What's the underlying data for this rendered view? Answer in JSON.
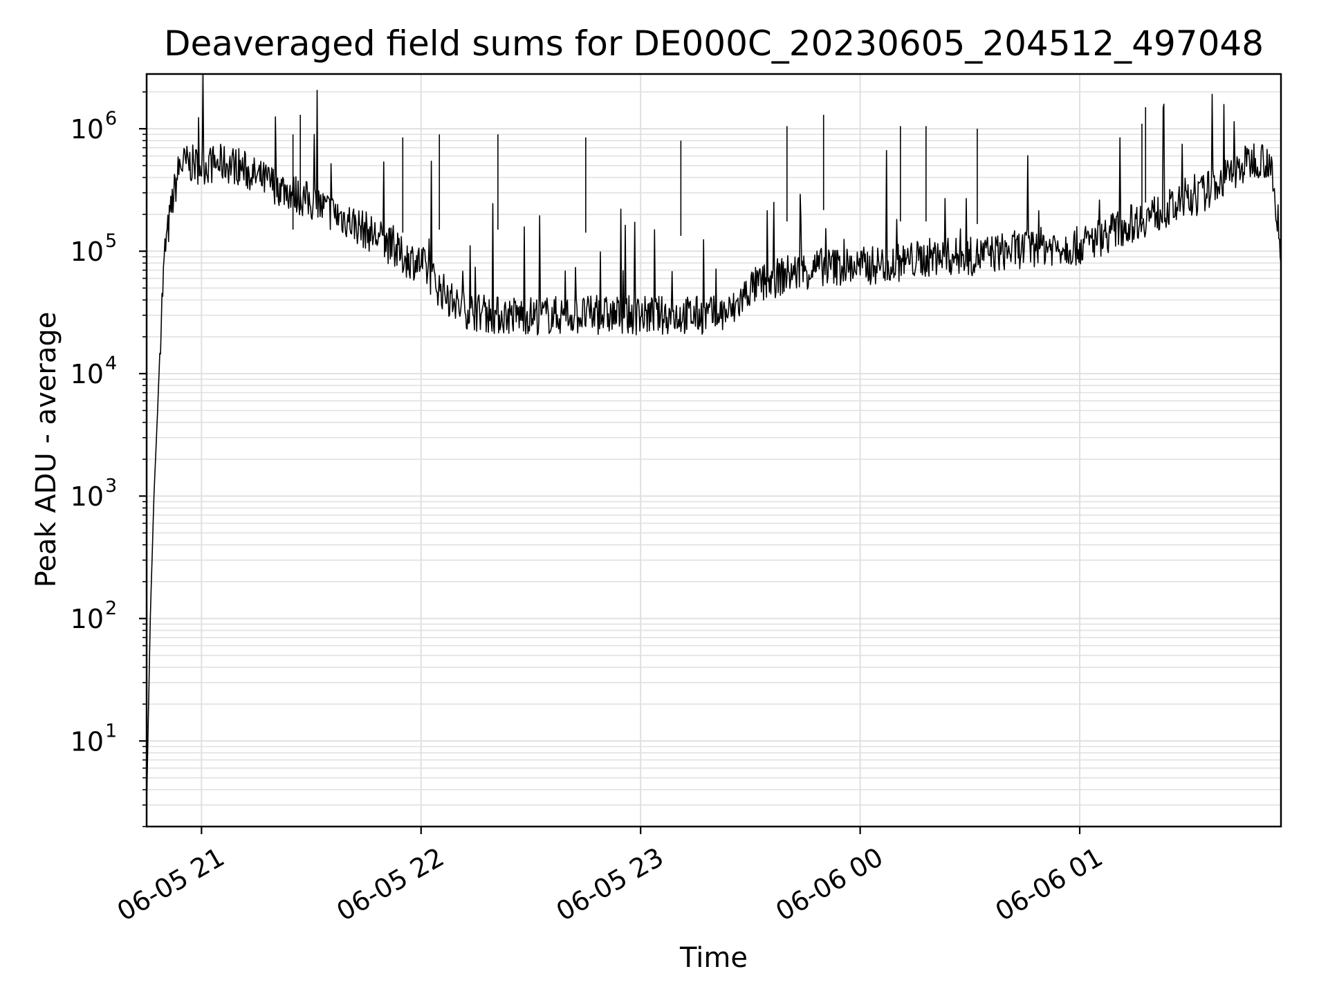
{
  "chart_data": {
    "type": "line",
    "title": "Deaveraged field sums for DE000C_20230605_204512_497048",
    "xlabel": "Time",
    "ylabel": "Peak ADU - average",
    "yscale": "log",
    "ylim": [
      2,
      2800000
    ],
    "xlim": [
      "2023-06-05 20:45",
      "2023-06-06 01:55"
    ],
    "grid": true,
    "line_color": "#000000",
    "grid_color": "#e0e0e0",
    "x_ticks": [
      {
        "value": "2023-06-05 21:00",
        "label": "06-05 21"
      },
      {
        "value": "2023-06-05 22:00",
        "label": "06-05 22"
      },
      {
        "value": "2023-06-05 23:00",
        "label": "06-05 23"
      },
      {
        "value": "2023-06-06 00:00",
        "label": "06-06 00"
      },
      {
        "value": "2023-06-06 01:00",
        "label": "06-06 01"
      }
    ],
    "y_ticks": [
      {
        "value": 10,
        "base": "10",
        "exp": "1"
      },
      {
        "value": 100,
        "base": "10",
        "exp": "2"
      },
      {
        "value": 1000,
        "base": "10",
        "exp": "3"
      },
      {
        "value": 10000,
        "base": "10",
        "exp": "4"
      },
      {
        "value": 100000,
        "base": "10",
        "exp": "5"
      },
      {
        "value": 1000000,
        "base": "10",
        "exp": "6"
      }
    ],
    "series": [
      {
        "x": [
          "2023-06-05 20:45",
          "2023-06-05 20:46",
          "2023-06-05 20:47",
          "2023-06-05 20:48",
          "2023-06-05 20:49",
          "2023-06-05 20:50",
          "2023-06-05 20:52",
          "2023-06-05 20:54",
          "2023-06-05 20:56",
          "2023-06-05 21:00",
          "2023-06-05 21:05",
          "2023-06-05 21:10",
          "2023-06-05 21:15",
          "2023-06-05 21:20",
          "2023-06-05 21:25",
          "2023-06-05 21:30",
          "2023-06-05 21:40",
          "2023-06-05 21:50",
          "2023-06-05 21:55",
          "2023-06-05 22:00",
          "2023-06-05 22:05",
          "2023-06-05 22:10",
          "2023-06-05 22:15",
          "2023-06-05 22:20",
          "2023-06-05 22:30",
          "2023-06-05 22:40",
          "2023-06-05 22:50",
          "2023-06-05 23:00",
          "2023-06-05 23:10",
          "2023-06-05 23:20",
          "2023-06-05 23:25",
          "2023-06-05 23:30",
          "2023-06-05 23:40",
          "2023-06-05 23:50",
          "2023-06-06 00:00",
          "2023-06-06 00:10",
          "2023-06-06 00:20",
          "2023-06-06 00:30",
          "2023-06-06 00:40",
          "2023-06-06 00:50",
          "2023-06-06 01:00",
          "2023-06-06 01:10",
          "2023-06-06 01:20",
          "2023-06-06 01:30",
          "2023-06-06 01:40",
          "2023-06-06 01:48",
          "2023-06-06 01:52",
          "2023-06-06 01:54",
          "2023-06-06 01:55"
        ],
        "y": [
          3,
          100,
          1000,
          5000,
          30000,
          100000,
          250000,
          500000,
          520000,
          500000,
          520000,
          500000,
          400000,
          350000,
          300000,
          250000,
          180000,
          120000,
          90000,
          80000,
          50000,
          35000,
          32000,
          30000,
          30000,
          30000,
          30000,
          30000,
          30000,
          30000,
          32000,
          50000,
          65000,
          75000,
          75000,
          80000,
          90000,
          90000,
          100000,
          110000,
          110000,
          150000,
          200000,
          250000,
          400000,
          580000,
          550000,
          150000,
          80000
        ]
      }
    ],
    "spikes": [
      {
        "x": "2023-06-05 21:27",
        "y": 1300000
      },
      {
        "x": "2023-06-05 21:25",
        "y": 900000
      },
      {
        "x": "2023-06-05 21:55",
        "y": 850000
      },
      {
        "x": "2023-06-05 22:05",
        "y": 900000
      },
      {
        "x": "2023-06-05 22:21",
        "y": 900000
      },
      {
        "x": "2023-06-05 22:45",
        "y": 850000
      },
      {
        "x": "2023-06-05 23:11",
        "y": 800000
      },
      {
        "x": "2023-06-05 23:40",
        "y": 1050000
      },
      {
        "x": "2023-06-05 23:50",
        "y": 1300000
      },
      {
        "x": "2023-06-06 00:11",
        "y": 1050000
      },
      {
        "x": "2023-06-06 00:18",
        "y": 1050000
      },
      {
        "x": "2023-06-06 00:32",
        "y": 1000000
      },
      {
        "x": "2023-06-06 01:18",
        "y": 1500000
      },
      {
        "x": "2023-06-06 01:17",
        "y": 1100000
      }
    ]
  }
}
